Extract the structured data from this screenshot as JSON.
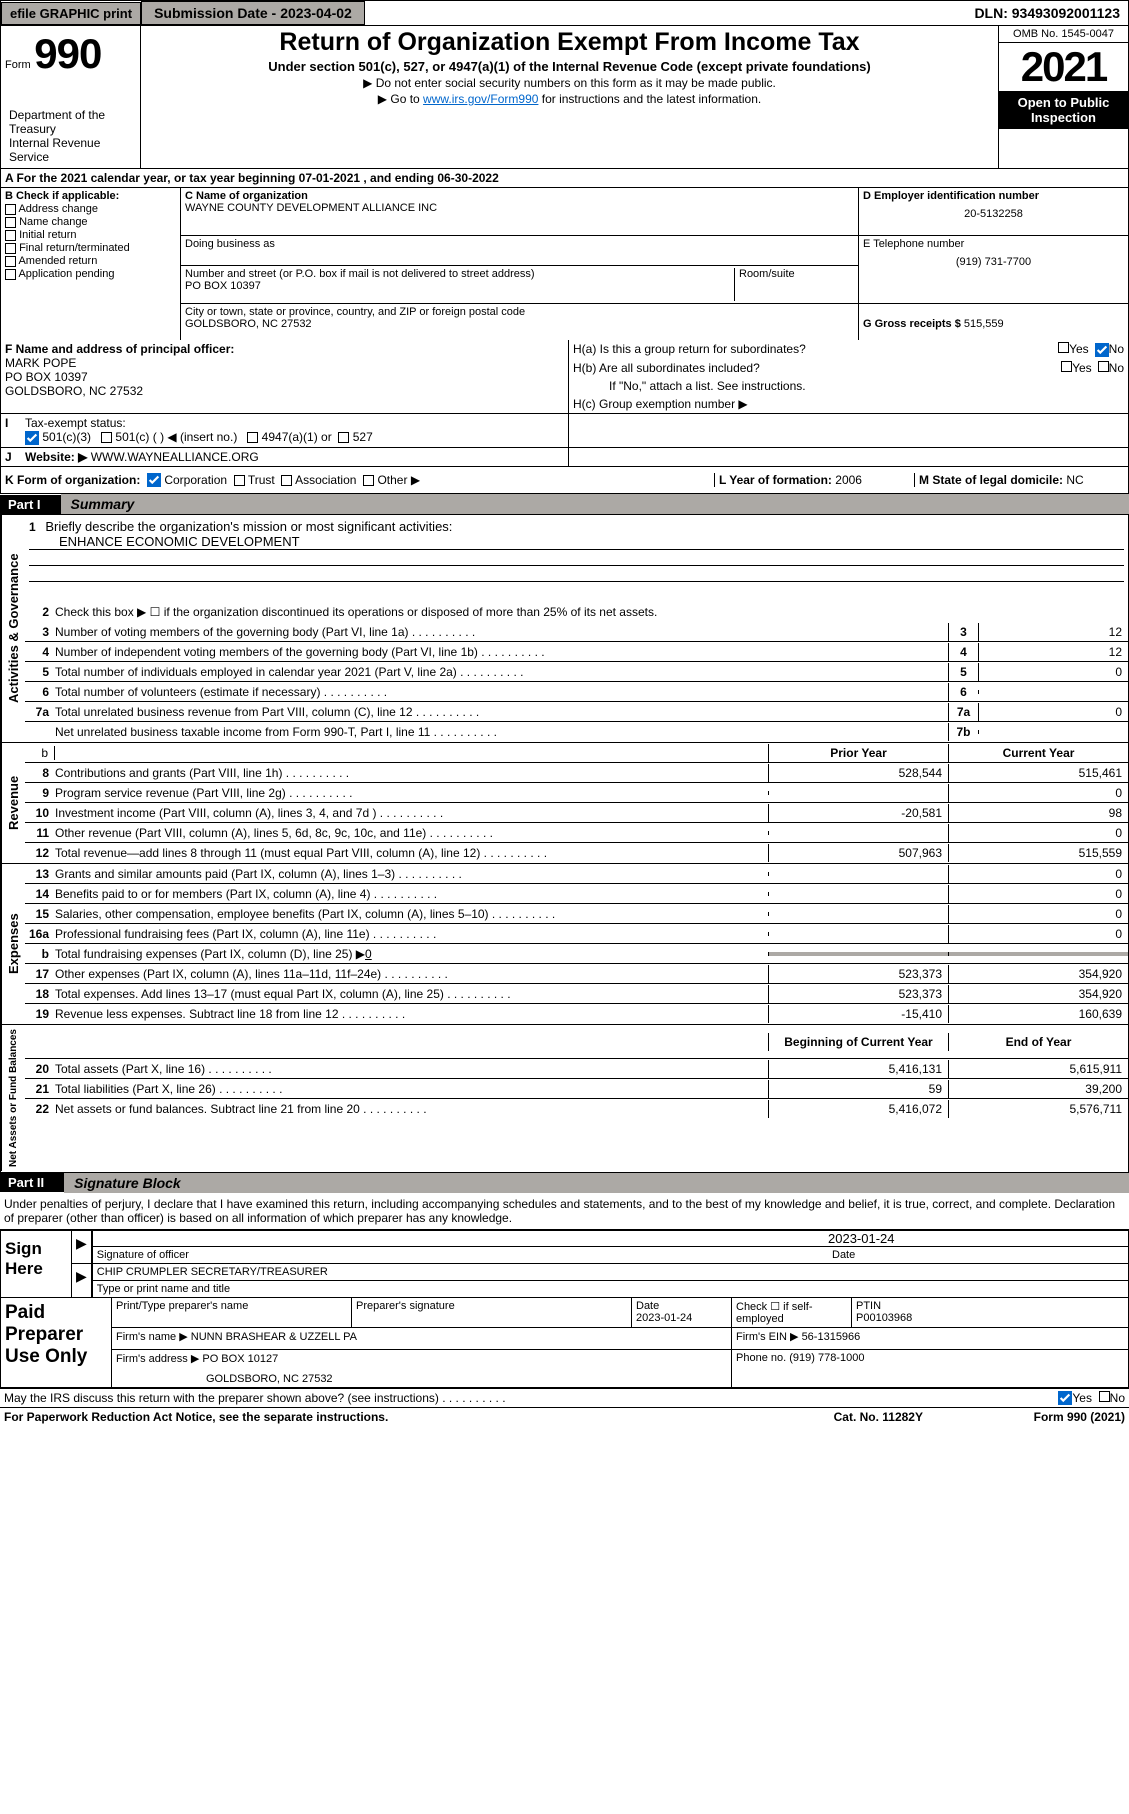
{
  "topbar": {
    "efile": "efile GRAPHIC print",
    "submission_label": "Submission Date -",
    "submission_date": "2023-04-02",
    "dln_label": "DLN:",
    "dln": "93493092001123"
  },
  "header": {
    "form_label": "Form",
    "form_number": "990",
    "title": "Return of Organization Exempt From Income Tax",
    "subtitle": "Under section 501(c), 527, or 4947(a)(1) of the Internal Revenue Code (except private foundations)",
    "note1": "▶ Do not enter social security numbers on this form as it may be made public.",
    "note2_pre": "▶ Go to ",
    "note2_link": "www.irs.gov/Form990",
    "note2_post": " for instructions and the latest information.",
    "omb": "OMB No. 1545-0047",
    "year": "2021",
    "open_public": "Open to Public Inspection",
    "dept": "Department of the Treasury",
    "irs": "Internal Revenue Service"
  },
  "row_a": "A For the 2021 calendar year, or tax year beginning 07-01-2021   , and ending 06-30-2022",
  "section_b": {
    "label": "B Check if applicable:",
    "items": [
      "Address change",
      "Name change",
      "Initial return",
      "Final return/terminated",
      "Amended return",
      "Application pending"
    ]
  },
  "section_c": {
    "name_label": "C Name of organization",
    "name": "WAYNE COUNTY DEVELOPMENT ALLIANCE INC",
    "dba_label": "Doing business as",
    "street_label": "Number and street (or P.O. box if mail is not delivered to street address)",
    "room_label": "Room/suite",
    "street": "PO BOX 10397",
    "city_label": "City or town, state or province, country, and ZIP or foreign postal code",
    "city": "GOLDSBORO, NC  27532"
  },
  "section_d": {
    "ein_label": "D Employer identification number",
    "ein": "20-5132258",
    "phone_label": "E Telephone number",
    "phone": "(919) 731-7700",
    "receipts_label": "G Gross receipts $",
    "receipts": "515,559"
  },
  "section_f": {
    "label": "F Name and address of principal officer:",
    "name": "MARK POPE",
    "street": "PO BOX 10397",
    "city": "GOLDSBORO, NC  27532"
  },
  "section_h": {
    "ha": "H(a)  Is this a group return for subordinates?",
    "hb": "H(b)  Are all subordinates included?",
    "hb_note": "If \"No,\" attach a list. See instructions.",
    "hc": "H(c)  Group exemption number ▶",
    "yes": "Yes",
    "no": "No"
  },
  "row_i": {
    "label": "Tax-exempt status:",
    "opts": [
      "501(c)(3)",
      "501(c) (  ) ◀ (insert no.)",
      "4947(a)(1) or",
      "527"
    ]
  },
  "row_j": {
    "label": "Website: ▶",
    "value": "WWW.WAYNEALLIANCE.ORG"
  },
  "row_k": {
    "label": "K Form of organization:",
    "opts": [
      "Corporation",
      "Trust",
      "Association",
      "Other ▶"
    ],
    "l_label": "L Year of formation:",
    "l_val": "2006",
    "m_label": "M State of legal domicile:",
    "m_val": "NC"
  },
  "part1": {
    "label": "Part I",
    "title": "Summary"
  },
  "governance": {
    "label": "Activities & Governance",
    "l1": "Briefly describe the organization's mission or most significant activities:",
    "l1_val": "ENHANCE ECONOMIC DEVELOPMENT",
    "l2": "Check this box ▶ ☐ if the organization discontinued its operations or disposed of more than 25% of its net assets.",
    "lines": [
      {
        "n": "3",
        "t": "Number of voting members of the governing body (Part VI, line 1a)",
        "box": "3",
        "v": "12"
      },
      {
        "n": "4",
        "t": "Number of independent voting members of the governing body (Part VI, line 1b)",
        "box": "4",
        "v": "12"
      },
      {
        "n": "5",
        "t": "Total number of individuals employed in calendar year 2021 (Part V, line 2a)",
        "box": "5",
        "v": "0"
      },
      {
        "n": "6",
        "t": "Total number of volunteers (estimate if necessary)",
        "box": "6",
        "v": ""
      },
      {
        "n": "7a",
        "t": "Total unrelated business revenue from Part VIII, column (C), line 12",
        "box": "7a",
        "v": "0"
      },
      {
        "n": "",
        "t": "Net unrelated business taxable income from Form 990-T, Part I, line 11",
        "box": "7b",
        "v": ""
      }
    ]
  },
  "revenue": {
    "label": "Revenue",
    "head_b": "b",
    "head_prior": "Prior Year",
    "head_current": "Current Year",
    "lines": [
      {
        "n": "8",
        "t": "Contributions and grants (Part VIII, line 1h)",
        "p": "528,544",
        "c": "515,461"
      },
      {
        "n": "9",
        "t": "Program service revenue (Part VIII, line 2g)",
        "p": "",
        "c": "0"
      },
      {
        "n": "10",
        "t": "Investment income (Part VIII, column (A), lines 3, 4, and 7d )",
        "p": "-20,581",
        "c": "98"
      },
      {
        "n": "11",
        "t": "Other revenue (Part VIII, column (A), lines 5, 6d, 8c, 9c, 10c, and 11e)",
        "p": "",
        "c": "0"
      },
      {
        "n": "12",
        "t": "Total revenue—add lines 8 through 11 (must equal Part VIII, column (A), line 12)",
        "p": "507,963",
        "c": "515,559"
      }
    ]
  },
  "expenses": {
    "label": "Expenses",
    "lines": [
      {
        "n": "13",
        "t": "Grants and similar amounts paid (Part IX, column (A), lines 1–3)",
        "p": "",
        "c": "0"
      },
      {
        "n": "14",
        "t": "Benefits paid to or for members (Part IX, column (A), line 4)",
        "p": "",
        "c": "0"
      },
      {
        "n": "15",
        "t": "Salaries, other compensation, employee benefits (Part IX, column (A), lines 5–10)",
        "p": "",
        "c": "0"
      },
      {
        "n": "16a",
        "t": "Professional fundraising fees (Part IX, column (A), line 11e)",
        "p": "",
        "c": "0"
      }
    ],
    "l16b_pre": "Total fundraising expenses (Part IX, column (D), line 25) ▶",
    "l16b_val": "0",
    "lines2": [
      {
        "n": "17",
        "t": "Other expenses (Part IX, column (A), lines 11a–11d, 11f–24e)",
        "p": "523,373",
        "c": "354,920"
      },
      {
        "n": "18",
        "t": "Total expenses. Add lines 13–17 (must equal Part IX, column (A), line 25)",
        "p": "523,373",
        "c": "354,920"
      },
      {
        "n": "19",
        "t": "Revenue less expenses. Subtract line 18 from line 12",
        "p": "-15,410",
        "c": "160,639"
      }
    ]
  },
  "netassets": {
    "label": "Net Assets or Fund Balances",
    "head_begin": "Beginning of Current Year",
    "head_end": "End of Year",
    "lines": [
      {
        "n": "20",
        "t": "Total assets (Part X, line 16)",
        "p": "5,416,131",
        "c": "5,615,911"
      },
      {
        "n": "21",
        "t": "Total liabilities (Part X, line 26)",
        "p": "59",
        "c": "39,200"
      },
      {
        "n": "22",
        "t": "Net assets or fund balances. Subtract line 21 from line 20",
        "p": "5,416,072",
        "c": "5,576,711"
      }
    ]
  },
  "part2": {
    "label": "Part II",
    "title": "Signature Block",
    "declaration": "Under penalties of perjury, I declare that I have examined this return, including accompanying schedules and statements, and to the best of my knowledge and belief, it is true, correct, and complete. Declaration of preparer (other than officer) is based on all information of which preparer has any knowledge."
  },
  "sign": {
    "left": "Sign Here",
    "sig_officer": "Signature of officer",
    "date": "Date",
    "date_val": "2023-01-24",
    "name": "CHIP CRUMPLER  SECRETARY/TREASURER",
    "name_label": "Type or print name and title"
  },
  "paid": {
    "left": "Paid Preparer Use Only",
    "h1": "Print/Type preparer's name",
    "h2": "Preparer's signature",
    "h3": "Date",
    "h3_val": "2023-01-24",
    "h4": "Check ☐ if self-employed",
    "h5": "PTIN",
    "h5_val": "P00103968",
    "firm_name_label": "Firm's name    ▶",
    "firm_name": "NUNN BRASHEAR & UZZELL PA",
    "firm_ein_label": "Firm's EIN ▶",
    "firm_ein": "56-1315966",
    "firm_addr_label": "Firm's address ▶",
    "firm_addr1": "PO BOX 10127",
    "firm_addr2": "GOLDSBORO, NC  27532",
    "phone_label": "Phone no.",
    "phone": "(919) 778-1000"
  },
  "footer": {
    "discuss": "May the IRS discuss this return with the preparer shown above? (see instructions)",
    "yes": "Yes",
    "no": "No",
    "paperwork": "For Paperwork Reduction Act Notice, see the separate instructions.",
    "cat": "Cat. No. 11282Y",
    "form": "Form 990 (2021)"
  },
  "colors": {
    "grey": "#aca9a5",
    "link": "#0066cc",
    "check": "#0066cc"
  }
}
